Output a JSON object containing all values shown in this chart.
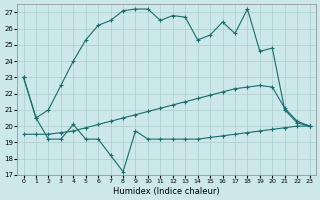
{
  "xlabel": "Humidex (Indice chaleur)",
  "xlim": [
    -0.5,
    23.5
  ],
  "ylim": [
    17,
    27.5
  ],
  "yticks": [
    17,
    18,
    19,
    20,
    21,
    22,
    23,
    24,
    25,
    26,
    27
  ],
  "xticks": [
    0,
    1,
    2,
    3,
    4,
    5,
    6,
    7,
    8,
    9,
    10,
    11,
    12,
    13,
    14,
    15,
    16,
    17,
    18,
    19,
    20,
    21,
    22,
    23
  ],
  "bg_color": "#cce8ea",
  "grid_color": "#aacccc",
  "line_color": "#1a6b6b",
  "line1_x": [
    0,
    1,
    2,
    3,
    4,
    5,
    6,
    7,
    8,
    9,
    10,
    11,
    12,
    13,
    14,
    15,
    16,
    17,
    18,
    19,
    20,
    21,
    22,
    23
  ],
  "line1_y": [
    23.0,
    20.5,
    19.2,
    19.2,
    20.1,
    19.2,
    19.2,
    18.2,
    17.2,
    19.7,
    19.2,
    19.2,
    19.2,
    19.2,
    19.2,
    19.3,
    19.4,
    19.5,
    19.6,
    19.7,
    19.8,
    19.9,
    20.0,
    20.0
  ],
  "line2_x": [
    0,
    1,
    2,
    3,
    4,
    5,
    6,
    7,
    8,
    9,
    10,
    11,
    12,
    13,
    14,
    15,
    16,
    17,
    18,
    19,
    20,
    21,
    22,
    23
  ],
  "line2_y": [
    23.0,
    20.5,
    21.0,
    22.5,
    24.0,
    25.3,
    26.2,
    26.5,
    27.1,
    27.2,
    27.2,
    26.5,
    26.8,
    26.7,
    25.3,
    25.6,
    26.4,
    25.7,
    27.2,
    24.6,
    24.8,
    21.0,
    20.2,
    20.0
  ],
  "line3_x": [
    0,
    1,
    2,
    3,
    4,
    5,
    6,
    7,
    8,
    9,
    10,
    11,
    12,
    13,
    14,
    15,
    16,
    17,
    18,
    19,
    20,
    21,
    22,
    23
  ],
  "line3_y": [
    19.5,
    19.5,
    19.5,
    19.6,
    19.7,
    19.9,
    20.1,
    20.3,
    20.5,
    20.7,
    20.9,
    21.1,
    21.3,
    21.5,
    21.7,
    21.9,
    22.1,
    22.3,
    22.4,
    22.5,
    22.4,
    21.1,
    20.3,
    20.0
  ]
}
